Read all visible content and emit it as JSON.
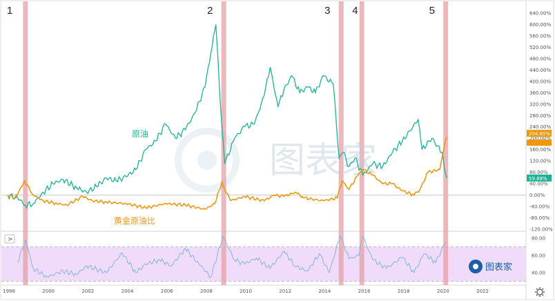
{
  "chart_data": {
    "type": "line",
    "x_axis": {
      "range": [
        1997.75,
        2024.2
      ],
      "tick_labels": [
        "1998",
        "2000",
        "2002",
        "2004",
        "2006",
        "2008",
        "2010",
        "2012",
        "2014",
        "2016",
        "2018",
        "2020",
        "2022"
      ]
    },
    "main_panel": {
      "y_scale": "percent change",
      "ylim": [
        -125,
        660
      ],
      "y_tick_labels": [
        "640.00%",
        "600.00%",
        "560.00%",
        "520.00%",
        "480.00%",
        "440.00%",
        "400.00%",
        "360.00%",
        "320.00%",
        "280.00%",
        "240.00%",
        "200.00%",
        "160.00%",
        "120.00%",
        "80.00%",
        "40.00%",
        "0.00%",
        "-40.00%",
        "-80.00%",
        "-120.00%"
      ],
      "zero_line": true,
      "series": [
        {
          "name": "原油",
          "color": "#19b395",
          "last_value_label": "59.88%",
          "x": [
            1998.0,
            1998.5,
            1998.9,
            1999.3,
            1999.8,
            2000.3,
            2000.8,
            2001.5,
            2002.0,
            2002.5,
            2003.0,
            2003.5,
            2004.0,
            2004.5,
            2005.0,
            2005.5,
            2006.0,
            2006.5,
            2007.0,
            2007.5,
            2008.0,
            2008.3,
            2008.55,
            2008.8,
            2009.0,
            2009.5,
            2010.0,
            2010.5,
            2011.0,
            2011.3,
            2011.7,
            2012.0,
            2012.4,
            2012.8,
            2013.2,
            2013.6,
            2014.0,
            2014.5,
            2014.8,
            2015.0,
            2015.3,
            2015.6,
            2016.0,
            2016.5,
            2017.0,
            2017.5,
            2018.0,
            2018.8,
            2019.0,
            2019.5,
            2020.0,
            2020.25
          ],
          "y": [
            0,
            -10,
            -35,
            -30,
            10,
            40,
            55,
            25,
            10,
            30,
            60,
            50,
            65,
            90,
            160,
            190,
            250,
            200,
            230,
            290,
            380,
            500,
            600,
            300,
            110,
            200,
            240,
            250,
            350,
            450,
            310,
            370,
            420,
            360,
            380,
            360,
            420,
            390,
            130,
            150,
            100,
            130,
            70,
            110,
            100,
            150,
            190,
            265,
            160,
            200,
            150,
            60
          ]
        },
        {
          "name": "黄金原油比",
          "color": "#f0960f",
          "last_value_label": "204.85%",
          "x": [
            1998.0,
            1998.4,
            1998.85,
            1999.3,
            1999.8,
            2000.5,
            2001.0,
            2001.8,
            2002.3,
            2003.0,
            2004.0,
            2005.0,
            2006.0,
            2007.0,
            2008.0,
            2008.5,
            2008.85,
            2009.0,
            2009.3,
            2010.0,
            2011.0,
            2011.5,
            2012.0,
            2012.6,
            2013.0,
            2014.0,
            2014.7,
            2014.95,
            2015.3,
            2015.7,
            2016.0,
            2016.5,
            2017.0,
            2017.5,
            2018.0,
            2018.6,
            2018.9,
            2019.3,
            2019.9,
            2020.1,
            2020.25
          ],
          "y": [
            0,
            -10,
            50,
            0,
            -20,
            -30,
            -35,
            -5,
            -20,
            -25,
            -30,
            -45,
            -30,
            -35,
            -50,
            -30,
            45,
            20,
            -20,
            -5,
            -20,
            0,
            -5,
            10,
            -10,
            -20,
            -10,
            50,
            20,
            65,
            90,
            70,
            40,
            40,
            15,
            0,
            20,
            80,
            90,
            160,
            205
          ]
        }
      ]
    },
    "sub_panel": {
      "ylim": [
        20,
        90
      ],
      "y_tick_labels": [
        "80.00",
        "60.00",
        "40.00"
      ],
      "band": [
        30,
        70
      ],
      "band_color": "#f0dcfa",
      "line_color": "#7fb5dd",
      "x": [
        1998.5,
        1998.9,
        1999.3,
        2000.0,
        2000.8,
        2001.5,
        2002.0,
        2003.0,
        2003.8,
        2004.5,
        2005.0,
        2005.7,
        2006.3,
        2007.0,
        2007.7,
        2008.3,
        2008.9,
        2009.5,
        2010.0,
        2010.6,
        2011.3,
        2012.0,
        2012.6,
        2013.2,
        2013.8,
        2014.3,
        2014.85,
        2015.3,
        2015.8,
        2016.0,
        2016.5,
        2017.2,
        2018.0,
        2018.6,
        2019.1,
        2019.7,
        2020.2
      ],
      "y": [
        52,
        78,
        45,
        35,
        42,
        38,
        48,
        40,
        63,
        40,
        50,
        55,
        48,
        68,
        50,
        35,
        82,
        55,
        50,
        57,
        45,
        65,
        47,
        42,
        62,
        40,
        83,
        56,
        60,
        82,
        55,
        45,
        58,
        40,
        62,
        52,
        76
      ]
    },
    "event_markers": [
      {
        "label": "1",
        "x": 1998.9
      },
      {
        "label": "2",
        "x": 2008.95
      },
      {
        "label": "3",
        "x": 2014.9
      },
      {
        "label": "4",
        "x": 2015.95
      },
      {
        "label": "5",
        "x": 2020.2
      }
    ],
    "event_band_color": "#e6a0a5",
    "watermark": "图表家"
  },
  "ui": {
    "expand_button_label": ">",
    "settings_icon": "gear-icon"
  }
}
